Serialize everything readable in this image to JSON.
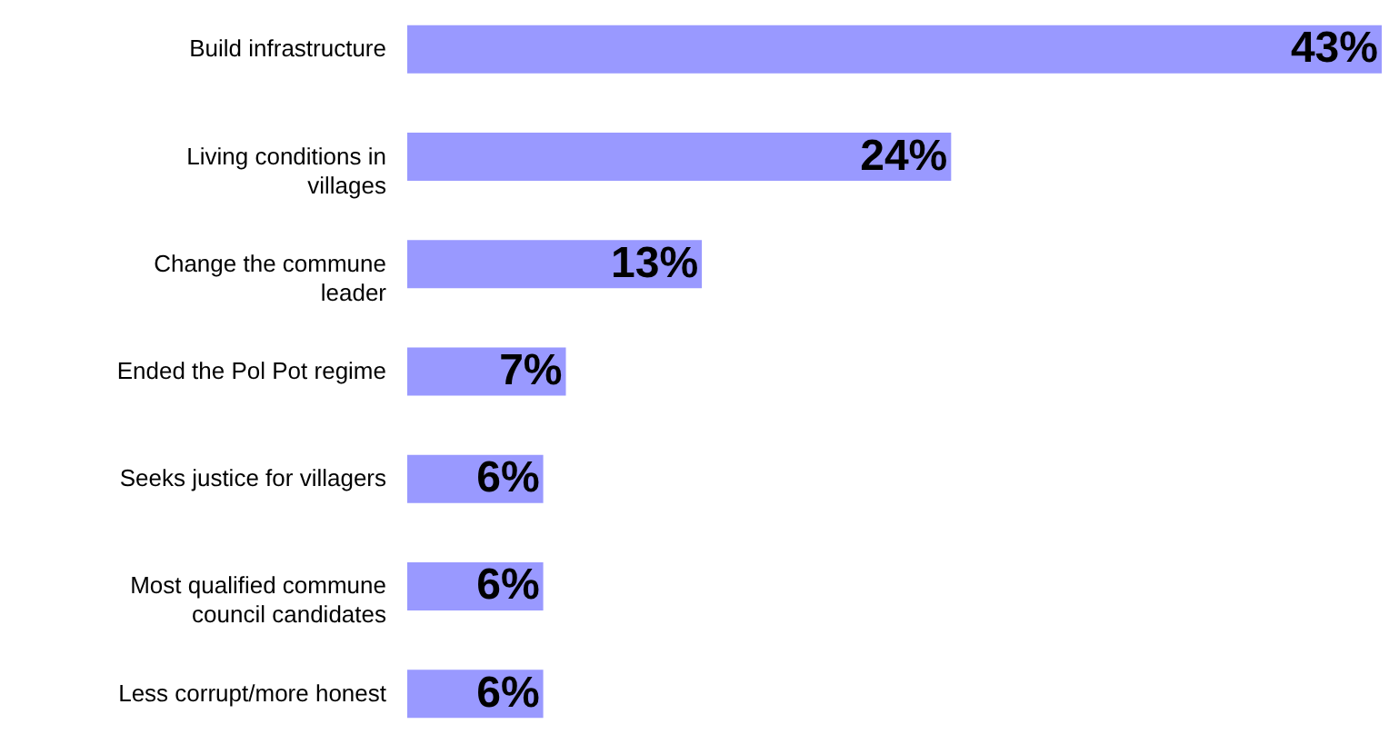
{
  "chart_data": {
    "type": "bar",
    "orientation": "horizontal",
    "categories": [
      "Build infrastructure",
      "Living conditions in\nvillages",
      "Change the commune\nleader",
      "Ended the Pol Pot regime",
      "Seeks justice for villagers",
      "Most qualified commune\ncouncil candidates",
      "Less corrupt/more honest"
    ],
    "values": [
      43,
      24,
      13,
      7,
      6,
      6,
      6
    ],
    "color": "#9999ff",
    "value_labels": [
      "43%",
      "24%",
      "13%",
      "7%",
      "6%",
      "6%",
      "6%"
    ]
  }
}
